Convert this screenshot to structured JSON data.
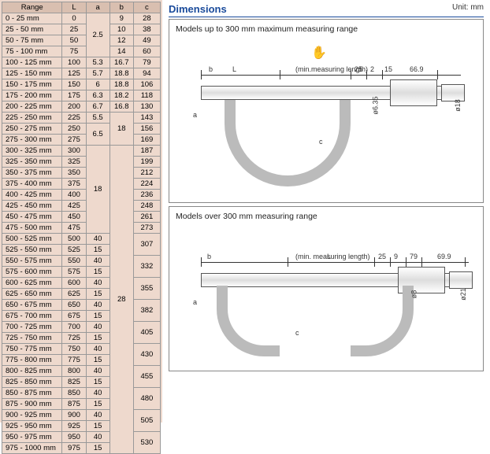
{
  "table": {
    "headers": [
      "Range",
      "L",
      "a",
      "b",
      "c"
    ],
    "col_widths": [
      "38%",
      "15%",
      "15%",
      "15%",
      "17%"
    ],
    "rows": [
      {
        "range": "0 - 25 mm",
        "L": "0",
        "a": {
          "v": "2.5",
          "rs": 4
        },
        "b": "9",
        "c": "28"
      },
      {
        "range": "25 - 50 mm",
        "L": "25",
        "b": "10",
        "c": "38"
      },
      {
        "range": "50 - 75 mm",
        "L": "50",
        "b": "12",
        "c": "49"
      },
      {
        "range": "75 - 100 mm",
        "L": "75",
        "b": "14",
        "c": "60"
      },
      {
        "range": "100 - 125 mm",
        "L": "100",
        "a": {
          "v": "5.3",
          "rs": 1
        },
        "b": "16.7",
        "c": "79"
      },
      {
        "range": "125 - 150 mm",
        "L": "125",
        "a": {
          "v": "5.7",
          "rs": 1
        },
        "b": "18.8",
        "c": "94"
      },
      {
        "range": "150 - 175 mm",
        "L": "150",
        "a": {
          "v": "6",
          "rs": 1
        },
        "b": "18.8",
        "c": "106"
      },
      {
        "range": "175 - 200 mm",
        "L": "175",
        "a": {
          "v": "6.3",
          "rs": 1
        },
        "b": "18.2",
        "c": "118"
      },
      {
        "range": "200 - 225 mm",
        "L": "200",
        "a": {
          "v": "6.7",
          "rs": 1
        },
        "b": "16.8",
        "c": "130"
      },
      {
        "range": "225 - 250 mm",
        "L": "225",
        "a": {
          "v": "5.5",
          "rs": 1
        },
        "b": {
          "v": "18",
          "rs": 3
        },
        "c": "143"
      },
      {
        "range": "250 - 275 mm",
        "L": "250",
        "a": {
          "v": "6.5",
          "rs": 2
        },
        "c": "156"
      },
      {
        "range": "275 - 300 mm",
        "L": "275",
        "c": "169"
      },
      {
        "range": "300 - 325 mm",
        "L": "300",
        "a": {
          "v": "18",
          "rs": 8
        },
        "b": {
          "v": "28",
          "rs": 28
        },
        "c": "187"
      },
      {
        "range": "325 - 350 mm",
        "L": "325",
        "c": "199"
      },
      {
        "range": "350 - 375 mm",
        "L": "350",
        "c": "212"
      },
      {
        "range": "375 - 400 mm",
        "L": "375",
        "c": "224"
      },
      {
        "range": "400 - 425 mm",
        "L": "400",
        "c": "236"
      },
      {
        "range": "425 - 450 mm",
        "L": "425",
        "c": "248"
      },
      {
        "range": "450 - 475 mm",
        "L": "450",
        "c": "261"
      },
      {
        "range": "475 - 500 mm",
        "L": "475",
        "c": "273"
      },
      {
        "range": "500 - 525 mm",
        "L": "500",
        "a": {
          "v": "40",
          "rs": 1
        },
        "c": {
          "v": "307",
          "rs": 2
        }
      },
      {
        "range": "525 - 550 mm",
        "L": "525",
        "a": {
          "v": "15",
          "rs": 1
        }
      },
      {
        "range": "550 - 575 mm",
        "L": "550",
        "a": {
          "v": "40",
          "rs": 1
        },
        "c": {
          "v": "332",
          "rs": 2
        }
      },
      {
        "range": "575 - 600 mm",
        "L": "575",
        "a": {
          "v": "15",
          "rs": 1
        }
      },
      {
        "range": "600 - 625 mm",
        "L": "600",
        "a": {
          "v": "40",
          "rs": 1
        },
        "c": {
          "v": "355",
          "rs": 2
        }
      },
      {
        "range": "625 - 650 mm",
        "L": "625",
        "a": {
          "v": "15",
          "rs": 1
        }
      },
      {
        "range": "650 - 675 mm",
        "L": "650",
        "a": {
          "v": "40",
          "rs": 1
        },
        "c": {
          "v": "382",
          "rs": 2
        }
      },
      {
        "range": "675 - 700 mm",
        "L": "675",
        "a": {
          "v": "15",
          "rs": 1
        }
      },
      {
        "range": "700 - 725 mm",
        "L": "700",
        "a": {
          "v": "40",
          "rs": 1
        },
        "c": {
          "v": "405",
          "rs": 2
        }
      },
      {
        "range": "725 - 750 mm",
        "L": "725",
        "a": {
          "v": "15",
          "rs": 1
        }
      },
      {
        "range": "750 - 775 mm",
        "L": "750",
        "a": {
          "v": "40",
          "rs": 1
        },
        "c": {
          "v": "430",
          "rs": 2
        }
      },
      {
        "range": "775 - 800 mm",
        "L": "775",
        "a": {
          "v": "15",
          "rs": 1
        }
      },
      {
        "range": "800 - 825 mm",
        "L": "800",
        "a": {
          "v": "40",
          "rs": 1
        },
        "c": {
          "v": "455",
          "rs": 2
        }
      },
      {
        "range": "825 - 850 mm",
        "L": "825",
        "a": {
          "v": "15",
          "rs": 1
        }
      },
      {
        "range": "850 - 875 mm",
        "L": "850",
        "a": {
          "v": "40",
          "rs": 1
        },
        "c": {
          "v": "480",
          "rs": 2
        }
      },
      {
        "range": "875 - 900 mm",
        "L": "875",
        "a": {
          "v": "15",
          "rs": 1
        }
      },
      {
        "range": "900 - 925 mm",
        "L": "900",
        "a": {
          "v": "40",
          "rs": 1
        },
        "c": {
          "v": "505",
          "rs": 2
        }
      },
      {
        "range": "925 - 950 mm",
        "L": "925",
        "a": {
          "v": "15",
          "rs": 1
        }
      },
      {
        "range": "950 - 975 mm",
        "L": "950",
        "a": {
          "v": "40",
          "rs": 1
        },
        "c": {
          "v": "530",
          "rs": 2
        }
      },
      {
        "range": "975 - 1000 mm",
        "L": "975",
        "a": {
          "v": "15",
          "rs": 1
        }
      }
    ]
  },
  "dimensions": {
    "title": "Dimensions",
    "unit": "Unit: mm",
    "top": {
      "caption": "Models up to 300 mm maximum measuring range",
      "labels": {
        "L": "L",
        "b": "b",
        "a": "a",
        "c": "c",
        "min": "(min.measuring length)",
        "d25": "25",
        "d2": "2",
        "d15": "15",
        "d669": "66.9",
        "d8": "ø8",
        "d635": "ø6.35",
        "d18": "ø18"
      }
    },
    "bot": {
      "caption": "Models over 300 mm measuring range",
      "labels": {
        "L": "L",
        "b": "b",
        "a": "a",
        "c": "c",
        "min": "(min. measuring length)",
        "d25": "25",
        "d9": "9",
        "d79": "79",
        "d699": "69.9",
        "d8": "ø8",
        "d21": "ø21"
      }
    }
  }
}
